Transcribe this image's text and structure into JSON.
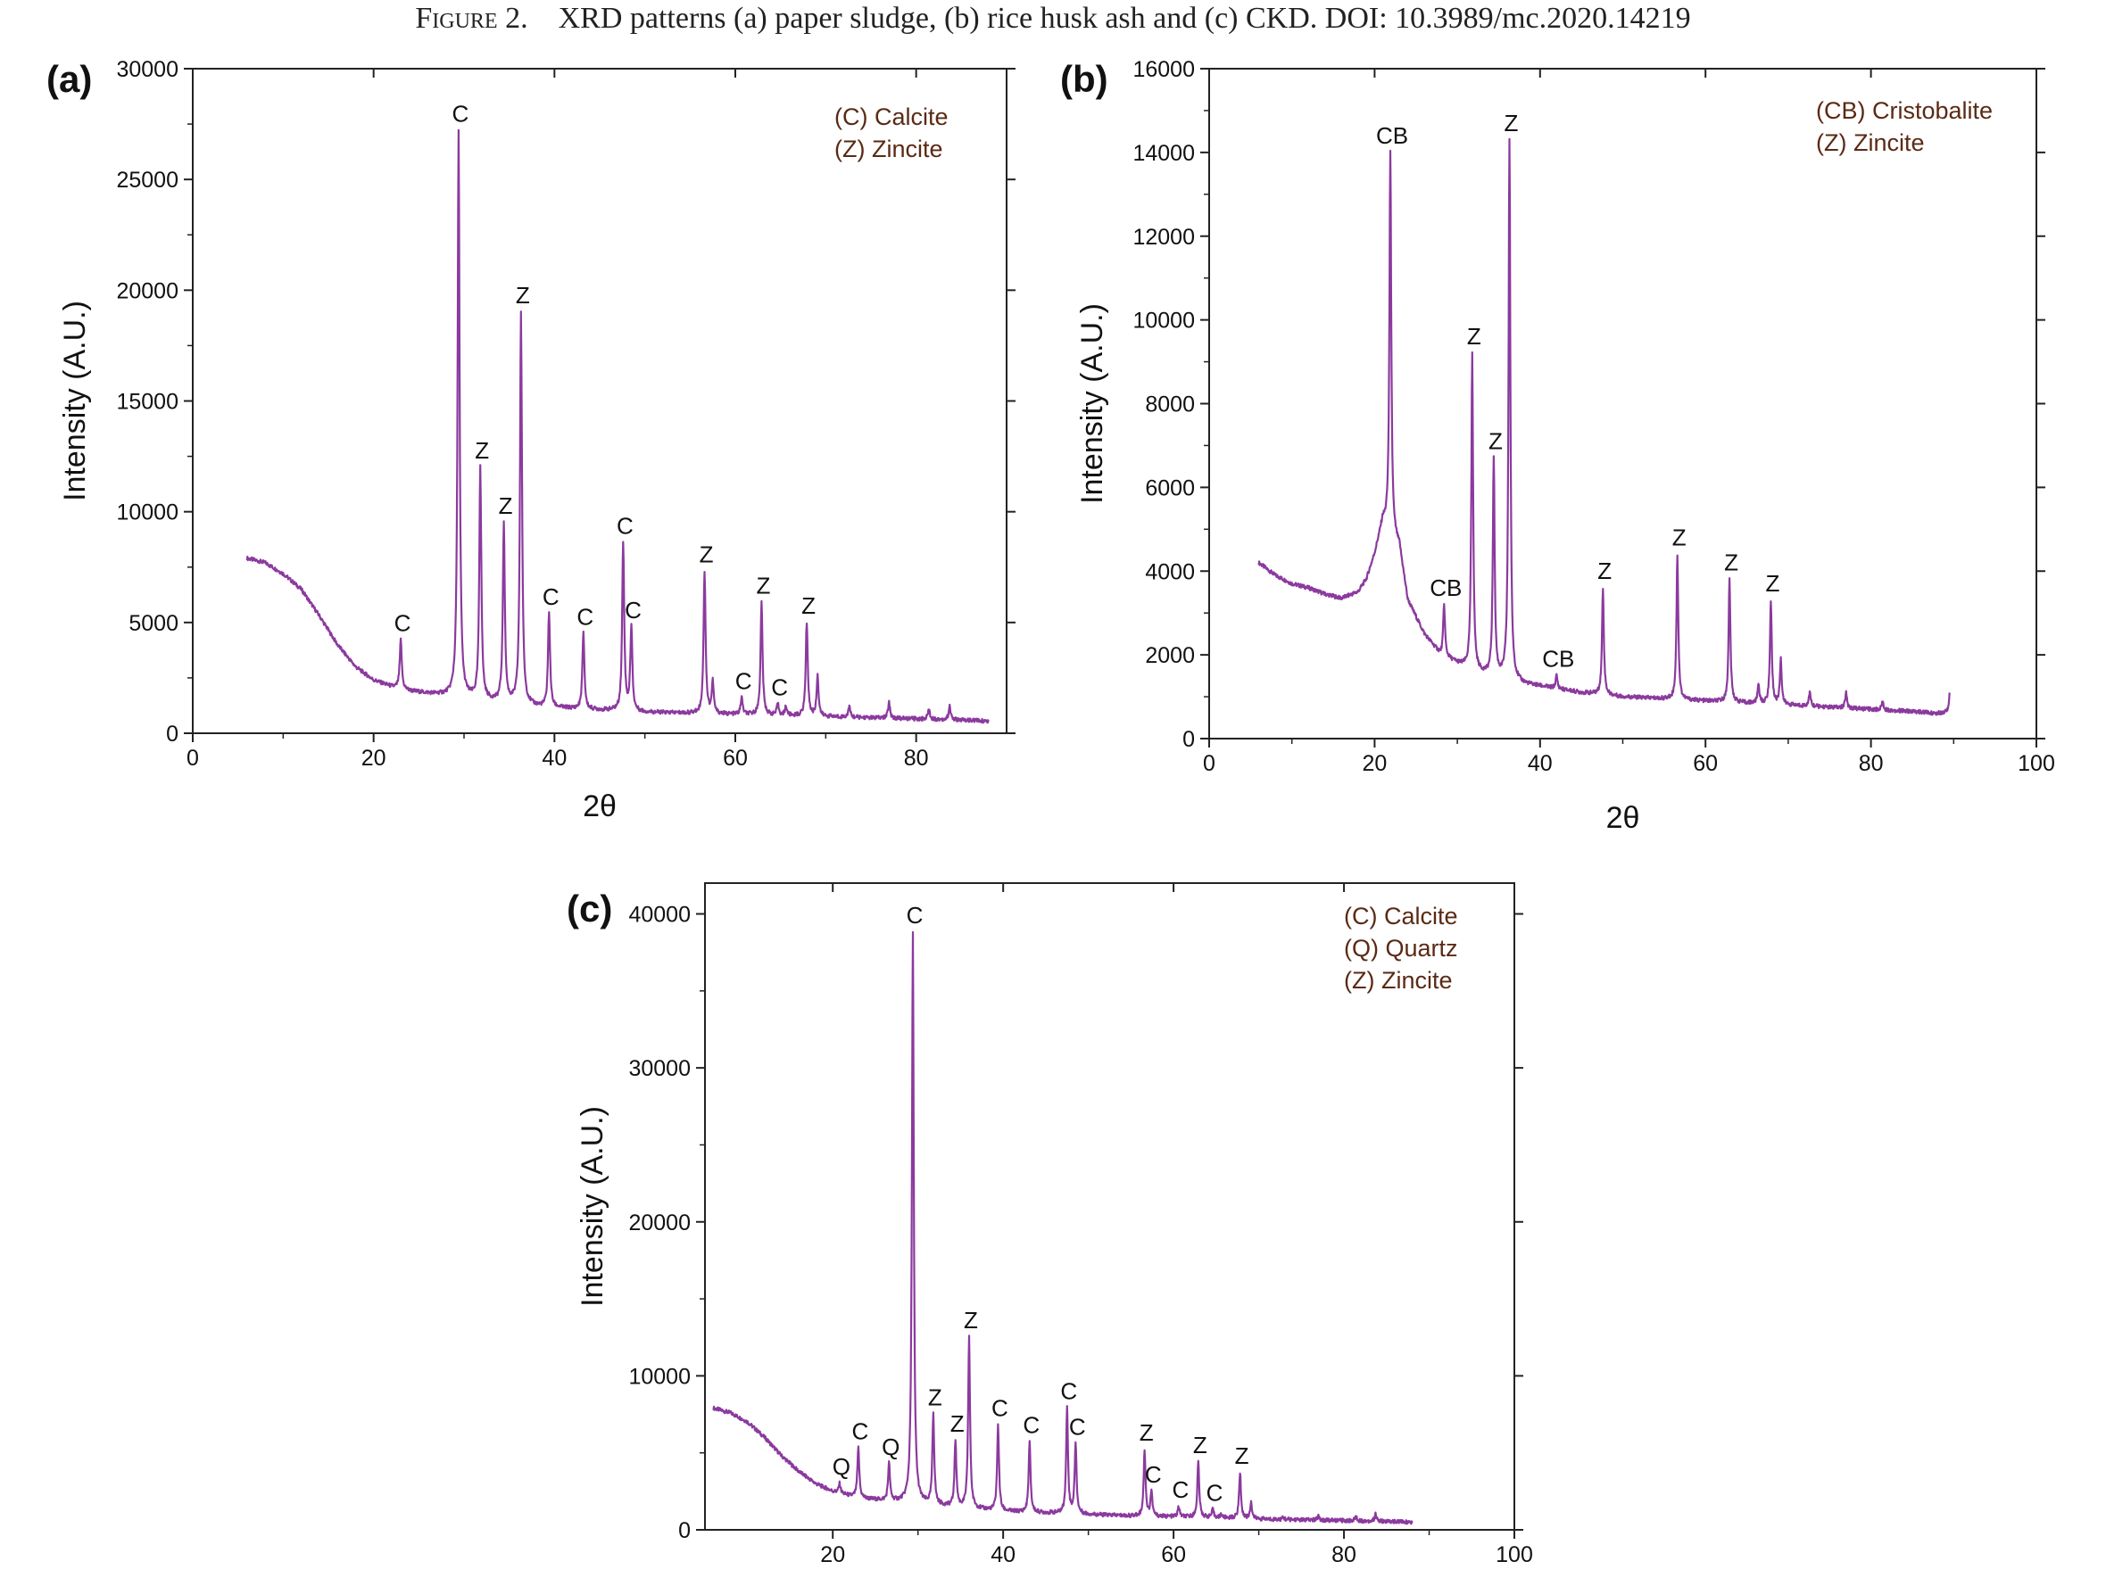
{
  "caption": {
    "figure_label": "Figure 2.",
    "text": "XRD patterns (a) paper sludge, (b) rice husk ash and (c) CKD. DOI: 10.3989/mc.2020.14219"
  },
  "colors": {
    "pattern": "#8b3a9e",
    "axis": "#222222"
  },
  "chart_data": [
    {
      "type": "line",
      "panel": "(a)",
      "xlabel": "2θ",
      "ylabel": "Intensity (A.U.)",
      "xlim": [
        0,
        90
      ],
      "ylim": [
        0,
        30000
      ],
      "xticks": [
        0,
        20,
        40,
        60,
        80
      ],
      "yticks": [
        0,
        5000,
        10000,
        15000,
        20000,
        25000,
        30000
      ],
      "legend_position": "top-right",
      "legend": [
        "(C) Calcite",
        "(Z) Zincite"
      ],
      "baseline": [
        [
          6,
          7900
        ],
        [
          8,
          7700
        ],
        [
          10,
          7200
        ],
        [
          12,
          6500
        ],
        [
          14,
          5300
        ],
        [
          16,
          4000
        ],
        [
          18,
          3000
        ],
        [
          20,
          2400
        ],
        [
          22,
          2100
        ],
        [
          24,
          1900
        ],
        [
          26,
          1800
        ],
        [
          28,
          1700
        ],
        [
          30,
          1600
        ],
        [
          32,
          1500
        ],
        [
          34,
          1400
        ],
        [
          36,
          1300
        ],
        [
          38,
          1200
        ],
        [
          40,
          1150
        ],
        [
          45,
          1050
        ],
        [
          50,
          950
        ],
        [
          55,
          900
        ],
        [
          60,
          850
        ],
        [
          65,
          800
        ],
        [
          70,
          750
        ],
        [
          75,
          700
        ],
        [
          80,
          650
        ],
        [
          85,
          600
        ],
        [
          88,
          550
        ]
      ],
      "peaks": [
        {
          "x": 23.0,
          "y": 4200,
          "label": "C"
        },
        {
          "x": 29.4,
          "y": 27200,
          "label": "C"
        },
        {
          "x": 31.8,
          "y": 12000,
          "label": "Z"
        },
        {
          "x": 34.4,
          "y": 9500,
          "label": "Z"
        },
        {
          "x": 36.3,
          "y": 19000,
          "label": "Z"
        },
        {
          "x": 39.4,
          "y": 5400,
          "label": "C"
        },
        {
          "x": 43.2,
          "y": 4500,
          "label": "C"
        },
        {
          "x": 47.6,
          "y": 8600,
          "label": "C"
        },
        {
          "x": 48.5,
          "y": 4800,
          "label": "C"
        },
        {
          "x": 56.6,
          "y": 7300,
          "label": "Z"
        },
        {
          "x": 57.5,
          "y": 2300,
          "label": ""
        },
        {
          "x": 60.7,
          "y": 1600,
          "label": "C"
        },
        {
          "x": 62.9,
          "y": 5900,
          "label": "Z"
        },
        {
          "x": 64.7,
          "y": 1300,
          "label": "C"
        },
        {
          "x": 65.6,
          "y": 1200,
          "label": ""
        },
        {
          "x": 67.9,
          "y": 5000,
          "label": "Z"
        },
        {
          "x": 69.1,
          "y": 2600,
          "label": ""
        },
        {
          "x": 72.6,
          "y": 1200,
          "label": ""
        },
        {
          "x": 77.0,
          "y": 1400,
          "label": ""
        },
        {
          "x": 81.4,
          "y": 1100,
          "label": ""
        },
        {
          "x": 83.7,
          "y": 1200,
          "label": ""
        }
      ]
    },
    {
      "type": "line",
      "panel": "(b)",
      "xlabel": "2θ",
      "ylabel": "Intensity (A.U.)",
      "xlim": [
        0,
        100
      ],
      "ylim": [
        0,
        16000
      ],
      "xticks": [
        0,
        20,
        40,
        60,
        80,
        100
      ],
      "yticks": [
        0,
        2000,
        4000,
        6000,
        8000,
        10000,
        12000,
        14000,
        16000
      ],
      "legend_position": "top-right",
      "legend": [
        "(CB) Cristobalite",
        "(Z) Zincite"
      ],
      "baseline": [
        [
          6,
          4200
        ],
        [
          8,
          3900
        ],
        [
          10,
          3700
        ],
        [
          12,
          3600
        ],
        [
          14,
          3450
        ],
        [
          16,
          3350
        ],
        [
          18,
          3500
        ],
        [
          19,
          3800
        ],
        [
          20,
          4400
        ],
        [
          21,
          5200
        ],
        [
          23,
          4600
        ],
        [
          24,
          3300
        ],
        [
          26,
          2500
        ],
        [
          28,
          2000
        ],
        [
          30,
          1800
        ],
        [
          32,
          1600
        ],
        [
          34,
          1500
        ],
        [
          36,
          1400
        ],
        [
          38,
          1300
        ],
        [
          40,
          1250
        ],
        [
          45,
          1100
        ],
        [
          50,
          1000
        ],
        [
          55,
          950
        ],
        [
          60,
          900
        ],
        [
          65,
          850
        ],
        [
          70,
          800
        ],
        [
          75,
          750
        ],
        [
          80,
          700
        ],
        [
          85,
          650
        ],
        [
          88,
          600
        ],
        [
          89.5,
          650
        ]
      ],
      "peaks": [
        {
          "x": 21.9,
          "y": 14000,
          "label": "CB"
        },
        {
          "x": 28.4,
          "y": 3200,
          "label": "CB"
        },
        {
          "x": 31.8,
          "y": 9200,
          "label": "Z"
        },
        {
          "x": 34.4,
          "y": 6700,
          "label": "Z"
        },
        {
          "x": 36.3,
          "y": 14300,
          "label": "Z"
        },
        {
          "x": 42.0,
          "y": 1500,
          "label": "CB"
        },
        {
          "x": 47.6,
          "y": 3600,
          "label": "Z"
        },
        {
          "x": 56.6,
          "y": 4400,
          "label": "Z"
        },
        {
          "x": 62.9,
          "y": 3800,
          "label": "Z"
        },
        {
          "x": 66.4,
          "y": 1300,
          "label": ""
        },
        {
          "x": 67.9,
          "y": 3300,
          "label": "Z"
        },
        {
          "x": 69.1,
          "y": 1900,
          "label": ""
        },
        {
          "x": 72.6,
          "y": 1100,
          "label": ""
        },
        {
          "x": 77.0,
          "y": 1100,
          "label": ""
        },
        {
          "x": 81.4,
          "y": 900,
          "label": ""
        },
        {
          "x": 89.6,
          "y": 1300,
          "label": ""
        }
      ]
    },
    {
      "type": "line",
      "panel": "(c)",
      "xlabel": "2θ",
      "ylabel": "Intensity (A.U.)",
      "xlim": [
        5,
        100
      ],
      "ylim": [
        0,
        42000
      ],
      "xticks": [
        20,
        40,
        60,
        80,
        100
      ],
      "yticks": [
        0,
        10000,
        20000,
        30000,
        40000
      ],
      "legend_position": "top-right",
      "legend": [
        "(C) Calcite",
        "(Q) Quartz",
        "(Z) Zincite"
      ],
      "baseline": [
        [
          6,
          7900
        ],
        [
          8,
          7600
        ],
        [
          10,
          7000
        ],
        [
          12,
          6000
        ],
        [
          14,
          4800
        ],
        [
          16,
          3800
        ],
        [
          18,
          3000
        ],
        [
          20,
          2500
        ],
        [
          22,
          2200
        ],
        [
          24,
          2000
        ],
        [
          26,
          1900
        ],
        [
          28,
          1800
        ],
        [
          30,
          1700
        ],
        [
          32,
          1600
        ],
        [
          34,
          1500
        ],
        [
          36,
          1400
        ],
        [
          38,
          1300
        ],
        [
          40,
          1200
        ],
        [
          45,
          1100
        ],
        [
          50,
          1000
        ],
        [
          55,
          900
        ],
        [
          60,
          850
        ],
        [
          65,
          800
        ],
        [
          70,
          700
        ],
        [
          75,
          650
        ],
        [
          80,
          600
        ],
        [
          85,
          550
        ],
        [
          88,
          500
        ]
      ],
      "peaks": [
        {
          "x": 20.8,
          "y": 3000,
          "label": "Q"
        },
        {
          "x": 23.0,
          "y": 5300,
          "label": "C"
        },
        {
          "x": 26.6,
          "y": 4300,
          "label": "Q"
        },
        {
          "x": 29.4,
          "y": 38800,
          "label": "C"
        },
        {
          "x": 31.8,
          "y": 7500,
          "label": "Z"
        },
        {
          "x": 34.4,
          "y": 5800,
          "label": "Z"
        },
        {
          "x": 36.0,
          "y": 12500,
          "label": "Z"
        },
        {
          "x": 39.4,
          "y": 6800,
          "label": "C"
        },
        {
          "x": 43.1,
          "y": 5700,
          "label": "C"
        },
        {
          "x": 47.5,
          "y": 7900,
          "label": "C"
        },
        {
          "x": 48.5,
          "y": 5600,
          "label": "C"
        },
        {
          "x": 56.6,
          "y": 5200,
          "label": "Z"
        },
        {
          "x": 57.4,
          "y": 2500,
          "label": "C"
        },
        {
          "x": 60.6,
          "y": 1500,
          "label": "C"
        },
        {
          "x": 62.9,
          "y": 4400,
          "label": "Z"
        },
        {
          "x": 64.6,
          "y": 1300,
          "label": "C"
        },
        {
          "x": 65.6,
          "y": 1000,
          "label": ""
        },
        {
          "x": 67.8,
          "y": 3700,
          "label": "Z"
        },
        {
          "x": 69.1,
          "y": 1800,
          "label": ""
        },
        {
          "x": 72.9,
          "y": 800,
          "label": ""
        },
        {
          "x": 77.0,
          "y": 900,
          "label": ""
        },
        {
          "x": 81.4,
          "y": 900,
          "label": ""
        },
        {
          "x": 83.7,
          "y": 1000,
          "label": ""
        }
      ]
    }
  ]
}
